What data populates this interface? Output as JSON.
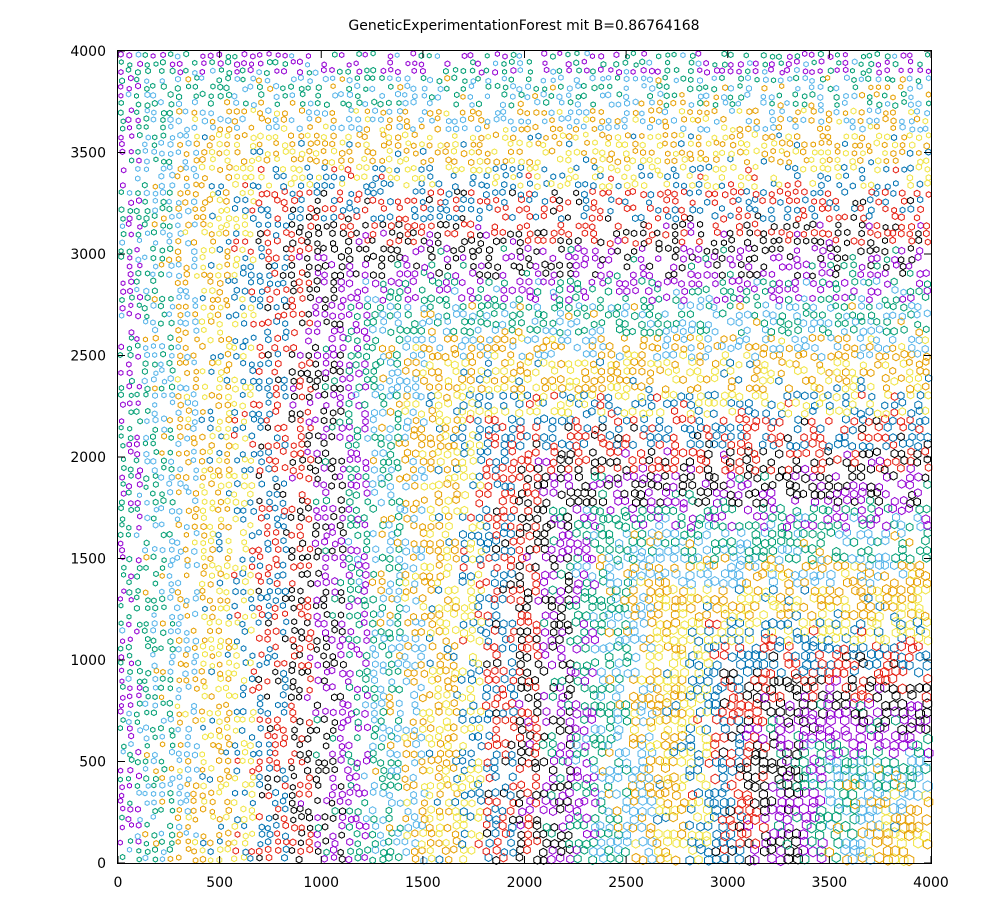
{
  "chart_data": {
    "type": "scatter",
    "title": "GeneticExperimentationForest mit B=0.86764168",
    "xlabel": "",
    "ylabel": "",
    "xlim": [
      0,
      4000
    ],
    "ylim": [
      0,
      4000
    ],
    "xticks": [
      "0",
      "500",
      "1000",
      "1500",
      "2000",
      "2500",
      "3000",
      "3500",
      "4000"
    ],
    "yticks": [
      "0",
      "500",
      "1000",
      "1500",
      "2000",
      "2500",
      "3000",
      "3500",
      "4000"
    ],
    "grid": false,
    "legend": "none",
    "marker": "open hexagon",
    "palette": [
      "#9400d3",
      "#009e73",
      "#56b4e9",
      "#e69f00",
      "#f0e442",
      "#0072b2",
      "#e51e10",
      "#000000"
    ],
    "series_note": "dense grid of points on nested L-shaped bands"
  }
}
